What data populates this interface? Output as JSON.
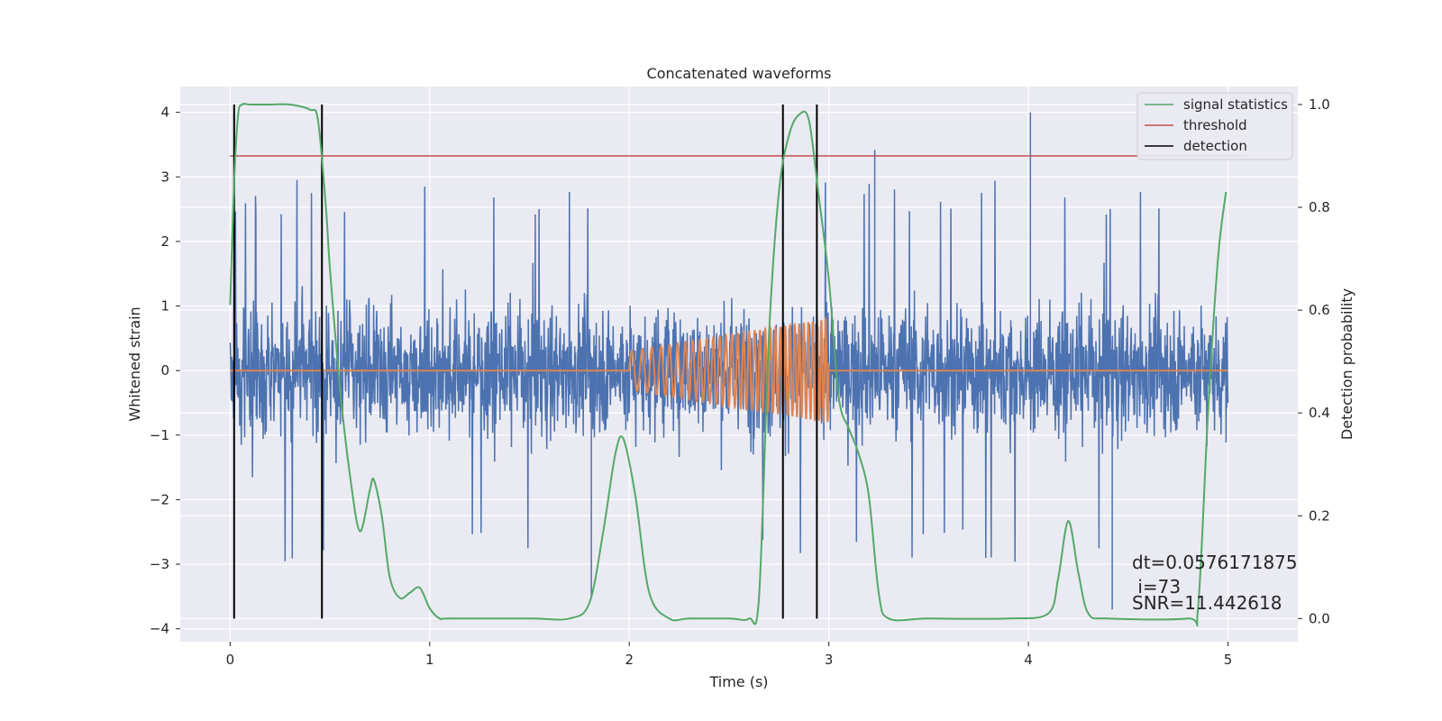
{
  "chart_data": {
    "type": "line",
    "title": "Concatenated waveforms",
    "xlabel": "Time (s)",
    "ylabel_left": "Whitened strain",
    "ylabel_right": "Detection probability",
    "xlim": [
      -0.25,
      5.35
    ],
    "ylim_left": [
      -4.2,
      4.4
    ],
    "ylim_right": [
      -0.045,
      1.035
    ],
    "x_ticks": [
      0,
      1,
      2,
      3,
      4,
      5
    ],
    "y_ticks_left": [
      -4,
      -3,
      -2,
      -1,
      0,
      1,
      2,
      3,
      4
    ],
    "y_ticks_right": [
      0.0,
      0.2,
      0.4,
      0.6,
      0.8,
      1.0
    ],
    "y_tick_labels_right": [
      "0.0",
      "0.2",
      "0.4",
      "0.6",
      "0.8",
      "1.0"
    ],
    "grid": true,
    "legend_position": "top-right",
    "legend": [
      "signal statistics",
      "threshold",
      "detection"
    ],
    "colors": {
      "strain": "#4c72b0",
      "waveform": "#dd8452",
      "signal_statistics": "#55a868",
      "threshold": "#c44e52",
      "detection": "#000000",
      "background": "#eaeaf2",
      "grid": "#ffffff"
    },
    "series": [
      {
        "name": "strain",
        "axis": "left",
        "description_range": {
          "x_start": 0,
          "x_end": 5,
          "amplitude_envelope": 1.5,
          "max_peak": 4.0,
          "min_peak": -3.7
        }
      },
      {
        "name": "waveform",
        "axis": "left",
        "chirp": {
          "x_start": 2.0,
          "x_end": 3.0,
          "amp_start": 0.3,
          "amp_end": 0.8,
          "freq_start": 18,
          "freq_end": 48
        }
      },
      {
        "name": "signal statistics",
        "axis": "right",
        "x": [
          0.0,
          0.02,
          0.04,
          0.06,
          0.1,
          0.2,
          0.3,
          0.4,
          0.44,
          0.48,
          0.5,
          0.55,
          0.6,
          0.65,
          0.7,
          0.72,
          0.76,
          0.8,
          0.85,
          0.9,
          0.95,
          1.0,
          1.05,
          1.1,
          1.5,
          1.7,
          1.8,
          1.87,
          1.93,
          1.97,
          2.03,
          2.1,
          2.2,
          2.3,
          2.5,
          2.6,
          2.65,
          2.7,
          2.75,
          2.8,
          2.85,
          2.9,
          2.95,
          3.0,
          3.05,
          3.1,
          3.15,
          3.2,
          3.25,
          3.3,
          3.5,
          3.9,
          4.1,
          4.15,
          4.2,
          4.25,
          4.3,
          4.4,
          4.8,
          4.85,
          4.9,
          4.95,
          4.99
        ],
        "y": [
          0.61,
          0.85,
          0.98,
          1.0,
          1.0,
          1.0,
          1.0,
          0.99,
          0.97,
          0.8,
          0.68,
          0.45,
          0.28,
          0.17,
          0.25,
          0.27,
          0.2,
          0.08,
          0.04,
          0.05,
          0.06,
          0.02,
          0.0,
          0.0,
          0.0,
          0.0,
          0.03,
          0.17,
          0.32,
          0.35,
          0.24,
          0.05,
          0.0,
          0.0,
          0.0,
          0.0,
          0.04,
          0.55,
          0.83,
          0.94,
          0.98,
          0.97,
          0.82,
          0.66,
          0.43,
          0.37,
          0.32,
          0.24,
          0.05,
          0.0,
          0.0,
          0.0,
          0.01,
          0.08,
          0.19,
          0.09,
          0.01,
          0.0,
          0.0,
          0.02,
          0.4,
          0.7,
          0.83
        ]
      },
      {
        "name": "threshold",
        "axis": "right",
        "x": [
          0.0,
          5.1
        ],
        "y": [
          0.9,
          0.9
        ]
      },
      {
        "name": "detection",
        "axis": "right",
        "x_positions": [
          0.02,
          0.46,
          2.77,
          2.94
        ],
        "y_range": [
          0.0,
          1.0
        ]
      }
    ],
    "annotations": {
      "dt": "dt=0.0576171875",
      "i": " i=73",
      "snr": "SNR=11.442618"
    }
  }
}
